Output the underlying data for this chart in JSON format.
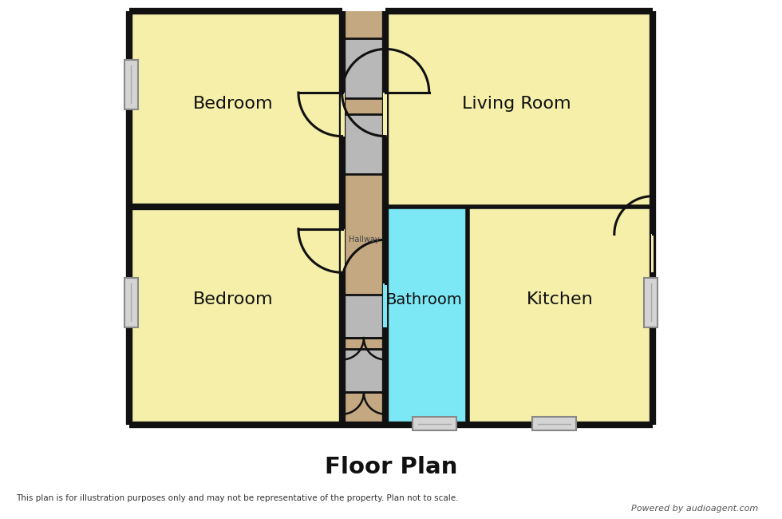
{
  "bg_color": "#ffffff",
  "wall_color": "#111111",
  "room_color": "#f5efaa",
  "hallway_color": "#c4a882",
  "bathroom_color": "#7de8f5",
  "gray_color": "#b8b8b8",
  "win_color": "#d0d0d0",
  "title": "Floor Plan",
  "subtitle": "This plan is for illustration purposes only and may not be representative of the property. Plan not to scale.",
  "powered_by": "Powered by audioagent.com",
  "lw_outer": 6,
  "lw_inner": 4,
  "lw_door": 2.2
}
